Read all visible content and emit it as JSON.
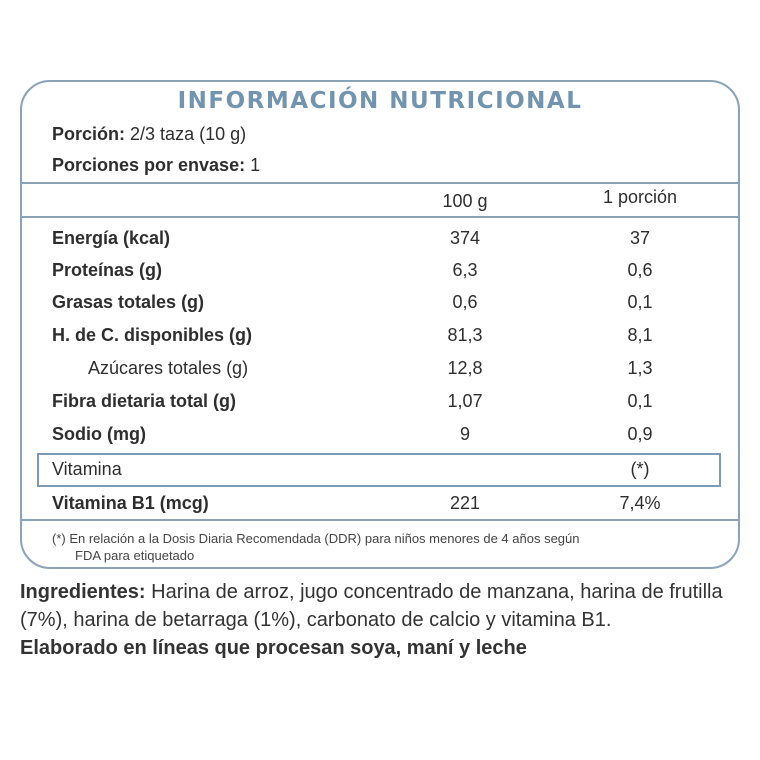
{
  "title": "INFORMACIÓN NUTRICIONAL",
  "portion": {
    "label": "Porción:",
    "value": "2/3 taza  (10 g)"
  },
  "portions_per_pack": {
    "label": "Porciones por envase:",
    "value": "1"
  },
  "columns": [
    "100 g",
    "1 porción"
  ],
  "rows": [
    {
      "name": "Energía (kcal)",
      "v100": "374",
      "vp": "37"
    },
    {
      "name": "Proteínas (g)",
      "v100": "6,3",
      "vp": "0,6"
    },
    {
      "name": "Grasas totales (g)",
      "v100": "0,6",
      "vp": "0,1"
    },
    {
      "name": "H. de C. disponibles (g)",
      "v100": "81,3",
      "vp": "8,1"
    },
    {
      "name": "Azúcares totales (g)",
      "v100": "12,8",
      "vp": "1,3"
    },
    {
      "name": "Fibra dietaria total (g)",
      "v100": "1,07",
      "vp": "0,1"
    },
    {
      "name": "Sodio (mg)",
      "v100": "9",
      "vp": "0,9"
    }
  ],
  "vitamin_header": {
    "label": "Vitamina",
    "note": "(*)"
  },
  "vitamin_row": {
    "name": "Vitamina B1 (mcg)",
    "v100": "221",
    "vp": "7,4%"
  },
  "footnote": {
    "mark": "(*)",
    "line1": "En relación a la Dosis Diaria Recomendada (DDR) para niños menores de 4 años según",
    "line2": "FDA para etiquetado"
  },
  "ingredients": {
    "label": "Ingredientes:",
    "text": "Harina de arroz, jugo concentrado de manzana, harina de frutilla (7%), harina de betarraga (1%), carbonato de calcio y vitamina B1."
  },
  "allergen": "Elaborado en líneas que procesan soya, maní y leche"
}
